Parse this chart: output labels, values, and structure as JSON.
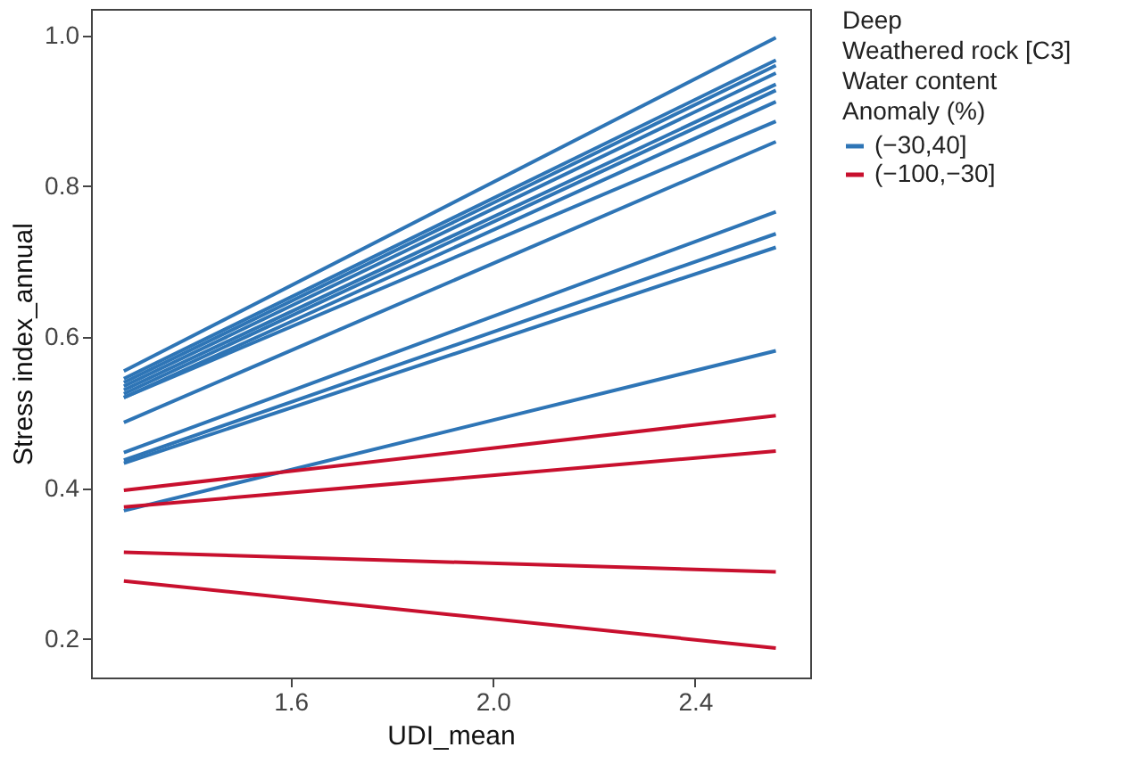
{
  "chart_data": {
    "type": "line",
    "xlabel": "UDI_mean",
    "ylabel": "Stress index_annual",
    "legend_title": "Deep\nWeathered rock [C3]\nWater content\nAnomaly (%)",
    "legend": "right",
    "grid": false,
    "line_style": "solid",
    "marker": "none",
    "xlim": [
      1.205,
      2.628
    ],
    "ylim": [
      0.149,
      1.035
    ],
    "xticks": [
      1.6,
      {
        "value": 2,
        "label": "2.0"
      },
      2.4
    ],
    "yticks": [
      0.2,
      0.4,
      0.6,
      0.8,
      {
        "value": 1,
        "label": "1.0"
      }
    ],
    "x": [
      1.27,
      2.56
    ],
    "series": [
      {
        "name": "(−30,40]",
        "color": "#2e75b6",
        "values": [
          0.555,
          0.997
        ]
      },
      {
        "color": "#2e75b6",
        "values": [
          0.545,
          0.967
        ]
      },
      {
        "color": "#2e75b6",
        "values": [
          0.54,
          0.96
        ]
      },
      {
        "color": "#2e75b6",
        "values": [
          0.535,
          0.95
        ]
      },
      {
        "color": "#2e75b6",
        "values": [
          0.53,
          0.935
        ]
      },
      {
        "color": "#2e75b6",
        "values": [
          0.525,
          0.927
        ]
      },
      {
        "color": "#2e75b6",
        "values": [
          0.52,
          0.912
        ]
      },
      {
        "color": "#2e75b6",
        "values": [
          0.52,
          0.886
        ]
      },
      {
        "color": "#2e75b6",
        "values": [
          0.487,
          0.859
        ]
      },
      {
        "color": "#2e75b6",
        "values": [
          0.447,
          0.766
        ]
      },
      {
        "color": "#2e75b6",
        "values": [
          0.437,
          0.737
        ]
      },
      {
        "color": "#2e75b6",
        "values": [
          0.433,
          0.719
        ]
      },
      {
        "color": "#2e75b6",
        "values": [
          0.37,
          0.582
        ]
      },
      {
        "name": "(−100,−30]",
        "color": "#c8102e",
        "values": [
          0.397,
          0.496
        ]
      },
      {
        "color": "#c8102e",
        "values": [
          0.375,
          0.449
        ]
      },
      {
        "color": "#c8102e",
        "values": [
          0.315,
          0.289
        ]
      },
      {
        "color": "#c8102e",
        "values": [
          0.277,
          0.188
        ]
      }
    ]
  }
}
